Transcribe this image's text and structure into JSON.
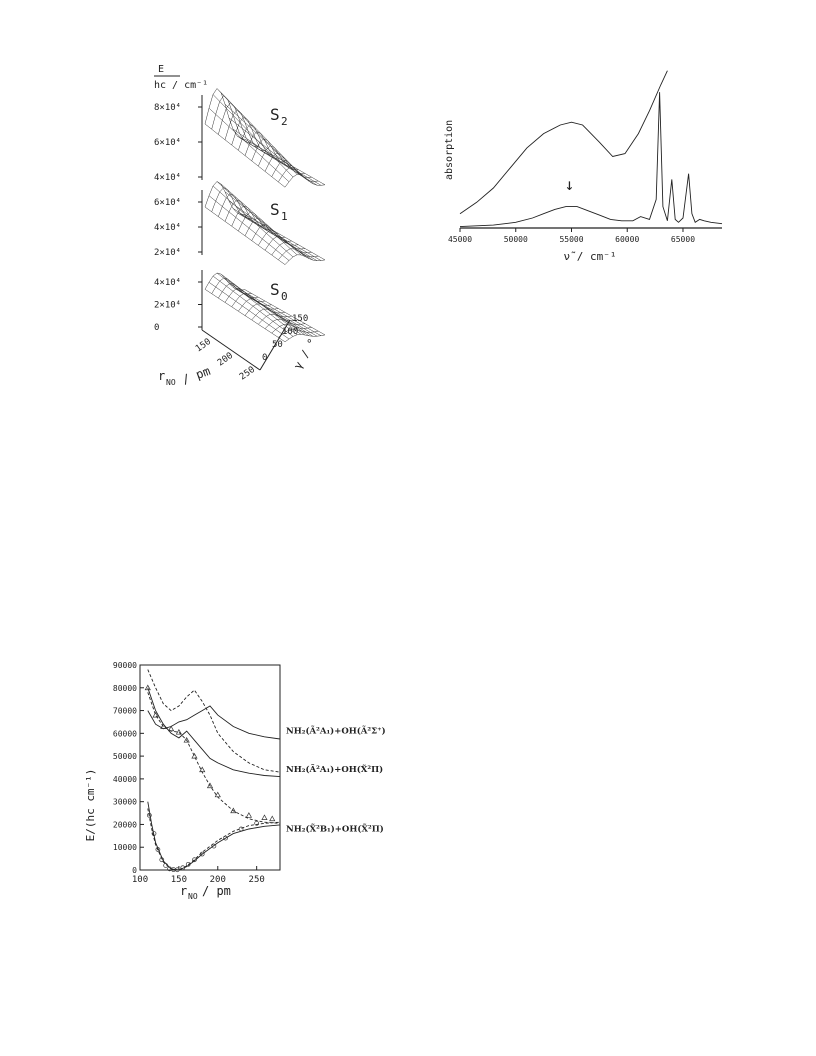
{
  "chart_data": [
    {
      "type": "surface",
      "title": "",
      "zlabel_top": "E",
      "zlabel_bottom": "hc / cm⁻¹",
      "xlabel_main": "r",
      "xlabel_sub": "NO",
      "xlabel_unit": "/ pm",
      "ylabel": "γ / °",
      "x_ticks": [
        "150",
        "200",
        "250"
      ],
      "y_ticks": [
        "0",
        "50",
        "100",
        "150"
      ],
      "panels": [
        {
          "name": "S",
          "sub": "2",
          "z_ticks": [
            "8×10⁴",
            "6×10⁴",
            "4×10⁴"
          ]
        },
        {
          "name": "S",
          "sub": "1",
          "z_ticks": [
            "6×10⁴",
            "4×10⁴",
            "2×10⁴"
          ]
        },
        {
          "name": "S",
          "sub": "0",
          "z_ticks": [
            "4×10⁴",
            "2×10⁴",
            "0"
          ]
        }
      ]
    },
    {
      "type": "line",
      "ylabel": "absorption",
      "xlabel": "ν̃ / cm⁻¹",
      "xlim": [
        45000,
        68500
      ],
      "x_ticks": [
        45000,
        50000,
        55000,
        60000,
        65000
      ],
      "ylim": [
        0,
        1
      ],
      "annotation": "↓",
      "annotation_x": 55000,
      "series": [
        {
          "x": [
            45000,
            46500,
            48000,
            49500,
            51000,
            52500,
            54000,
            55000,
            56000,
            57500,
            58700,
            59800,
            61000,
            62000,
            63000,
            63600
          ],
          "y": [
            0.1,
            0.18,
            0.28,
            0.42,
            0.56,
            0.66,
            0.72,
            0.74,
            0.72,
            0.6,
            0.5,
            0.52,
            0.66,
            0.82,
            1.0,
            1.1
          ]
        },
        {
          "x": [
            45000,
            48000,
            50000,
            51500,
            52500,
            53500,
            54500,
            55500,
            56500,
            57500,
            58500,
            59500,
            60500,
            61200,
            62000,
            62600,
            62900,
            63200,
            63600,
            64000,
            64300,
            64600,
            65000,
            65500,
            65800,
            66100,
            66500,
            66900,
            67500,
            68500
          ],
          "y": [
            0.01,
            0.02,
            0.04,
            0.07,
            0.1,
            0.13,
            0.15,
            0.15,
            0.12,
            0.09,
            0.06,
            0.05,
            0.05,
            0.08,
            0.06,
            0.2,
            0.95,
            0.15,
            0.05,
            0.34,
            0.06,
            0.04,
            0.07,
            0.38,
            0.1,
            0.04,
            0.06,
            0.05,
            0.04,
            0.03
          ]
        }
      ]
    },
    {
      "type": "line",
      "xlabel": "r",
      "xlabel_sub": "NO",
      "xlabel_unit": "/ pm",
      "ylabel": "E/(hc cm⁻¹)",
      "xlim": [
        100,
        280
      ],
      "ylim": [
        0,
        90000
      ],
      "x_ticks": [
        100,
        150,
        200,
        250
      ],
      "y_ticks": [
        0,
        10000,
        20000,
        30000,
        40000,
        50000,
        60000,
        70000,
        80000,
        90000
      ],
      "curve_labels": [
        "NH₂(Ã²A₁)+OH(Ã²Σ⁺)",
        "NH₂(Ã²A₁)+OH(X̃²Π)",
        "NH₂(X̃²B₁)+OH(X̃²Π)"
      ],
      "series": [
        {
          "style": "solid",
          "x": [
            110,
            120,
            130,
            140,
            150,
            160,
            170,
            180,
            190,
            200,
            220,
            240,
            260,
            280
          ],
          "y": [
            70000,
            64000,
            62000,
            63000,
            65000,
            66000,
            68000,
            70000,
            72000,
            68000,
            63000,
            60000,
            58500,
            57500
          ]
        },
        {
          "style": "solid",
          "x": [
            110,
            120,
            130,
            140,
            150,
            160,
            170,
            180,
            190,
            200,
            220,
            240,
            260,
            280
          ],
          "y": [
            80000,
            70000,
            64000,
            60000,
            58000,
            61000,
            57000,
            53000,
            49000,
            47000,
            44000,
            42500,
            41500,
            41000
          ]
        },
        {
          "style": "dashed",
          "x": [
            110,
            120,
            130,
            140,
            150,
            160,
            170,
            180,
            190,
            200,
            220,
            240,
            260,
            280
          ],
          "y": [
            88000,
            80000,
            73000,
            70000,
            72000,
            76000,
            79000,
            74000,
            68000,
            60000,
            52000,
            47000,
            44000,
            43000
          ]
        },
        {
          "style": "dashed",
          "x": [
            110,
            120,
            130,
            140,
            150,
            160,
            170,
            180,
            190,
            200,
            220,
            240,
            260,
            280
          ],
          "y": [
            78000,
            68000,
            63000,
            61000,
            60500,
            57000,
            50000,
            43000,
            37000,
            32000,
            26000,
            22500,
            21000,
            20500
          ]
        },
        {
          "style": "solid",
          "x": [
            110,
            115,
            120,
            130,
            140,
            150,
            160,
            170,
            180,
            200,
            220,
            240,
            260,
            280
          ],
          "y": [
            30000,
            20000,
            12000,
            4000,
            500,
            0,
            1500,
            4000,
            7000,
            12000,
            16000,
            18000,
            19200,
            19800
          ]
        },
        {
          "style": "dashed",
          "x": [
            110,
            115,
            120,
            130,
            140,
            150,
            160,
            170,
            180,
            200,
            220,
            240,
            260,
            280
          ],
          "y": [
            27000,
            18000,
            11000,
            3500,
            500,
            0,
            1800,
            4500,
            7800,
            13000,
            17000,
            19500,
            20500,
            21000
          ]
        },
        {
          "style": "triangles",
          "x": [
            110,
            120,
            130,
            140,
            150,
            160,
            170,
            180,
            190,
            200,
            220,
            240,
            260,
            270
          ],
          "y": [
            80000,
            68000,
            63000,
            62000,
            60500,
            57000,
            50000,
            44000,
            37000,
            33000,
            26000,
            24000,
            23000,
            22500
          ]
        },
        {
          "style": "circles",
          "x": [
            112,
            118,
            123,
            128,
            133,
            138,
            143,
            148,
            155,
            162,
            170,
            180,
            195,
            210,
            230,
            250
          ],
          "y": [
            24000,
            16000,
            9000,
            4500,
            2000,
            500,
            200,
            100,
            1000,
            2500,
            4500,
            7000,
            10500,
            14000,
            18000,
            20500
          ]
        }
      ]
    }
  ]
}
